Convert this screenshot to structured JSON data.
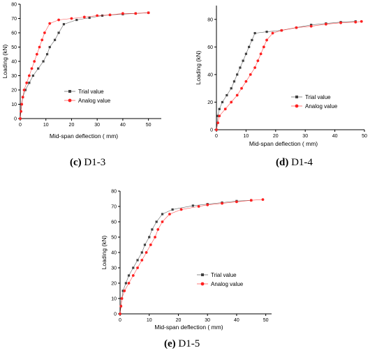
{
  "chart_data": [
    {
      "type": "line",
      "panel_label": "(c)",
      "panel_name": "D1-3",
      "xlabel": "Mid-span deflection ( mm)",
      "ylabel": "Loading (kN)",
      "xlim": [
        0,
        55
      ],
      "ylim": [
        0,
        80
      ],
      "xticks": [
        0,
        10,
        20,
        30,
        40,
        50
      ],
      "yticks": [
        0,
        10,
        20,
        30,
        40,
        50,
        60,
        70,
        80
      ],
      "legend_position": "center-right",
      "series": [
        {
          "name": "Trial value",
          "color": "#404040",
          "marker": "square",
          "points": [
            [
              0,
              0
            ],
            [
              0.5,
              10
            ],
            [
              1,
              15
            ],
            [
              2,
              20
            ],
            [
              3.5,
              25
            ],
            [
              5,
              30
            ],
            [
              7,
              35
            ],
            [
              9,
              40
            ],
            [
              10.5,
              45
            ],
            [
              11.5,
              50
            ],
            [
              13.5,
              55
            ],
            [
              15,
              60
            ],
            [
              17,
              66
            ],
            [
              22,
              69
            ],
            [
              27,
              70.5
            ],
            [
              32,
              72
            ],
            [
              35,
              72.5
            ],
            [
              40,
              73
            ],
            [
              45,
              73.5
            ],
            [
              50,
              74
            ]
          ]
        },
        {
          "name": "Analog value",
          "color": "#ff2020",
          "marker": "circle",
          "points": [
            [
              0,
              0
            ],
            [
              0.3,
              5
            ],
            [
              0.6,
              10
            ],
            [
              1,
              15
            ],
            [
              1.5,
              20
            ],
            [
              2.5,
              25
            ],
            [
              3.5,
              30
            ],
            [
              4.5,
              35
            ],
            [
              5.5,
              40
            ],
            [
              6.5,
              45
            ],
            [
              7.5,
              50
            ],
            [
              8.5,
              55
            ],
            [
              9.5,
              60
            ],
            [
              11.5,
              66.5
            ],
            [
              15,
              69
            ],
            [
              20,
              70
            ],
            [
              25,
              71
            ],
            [
              30,
              72
            ],
            [
              35,
              72.5
            ],
            [
              40,
              73.5
            ],
            [
              45,
              73.5
            ],
            [
              50,
              74
            ]
          ]
        }
      ]
    },
    {
      "type": "line",
      "panel_label": "(d)",
      "panel_name": "D1-4",
      "xlabel": "Mid-span deflection ( mm)",
      "ylabel": "Loading (kN)",
      "xlim": [
        0,
        50
      ],
      "ylim": [
        0,
        90
      ],
      "xticks": [
        0,
        10,
        20,
        30,
        40,
        50
      ],
      "yticks": [
        0,
        20,
        40,
        60,
        80
      ],
      "legend_position": "center-right",
      "series": [
        {
          "name": "Trial value",
          "color": "#404040",
          "marker": "square",
          "points": [
            [
              0,
              0
            ],
            [
              0.5,
              10
            ],
            [
              1,
              15
            ],
            [
              2,
              20
            ],
            [
              3.5,
              25
            ],
            [
              5,
              30
            ],
            [
              6,
              35
            ],
            [
              7,
              40
            ],
            [
              8,
              45
            ],
            [
              9,
              50
            ],
            [
              10,
              55
            ],
            [
              11,
              60
            ],
            [
              12,
              65
            ],
            [
              13,
              70
            ],
            [
              17,
              71
            ],
            [
              22,
              72
            ],
            [
              27,
              74
            ],
            [
              32,
              76
            ],
            [
              37,
              77
            ],
            [
              42,
              78
            ],
            [
              47,
              78.5
            ]
          ]
        },
        {
          "name": "Analog value",
          "color": "#ff2020",
          "marker": "circle",
          "points": [
            [
              0,
              0
            ],
            [
              0.5,
              5
            ],
            [
              1,
              10
            ],
            [
              3,
              15
            ],
            [
              5,
              20
            ],
            [
              7,
              25
            ],
            [
              8.5,
              30
            ],
            [
              10,
              35
            ],
            [
              11.5,
              40
            ],
            [
              13,
              45
            ],
            [
              14,
              50
            ],
            [
              15,
              55
            ],
            [
              16,
              60
            ],
            [
              17,
              65
            ],
            [
              19,
              70
            ],
            [
              22,
              72
            ],
            [
              27,
              74
            ],
            [
              32,
              75
            ],
            [
              37,
              76.5
            ],
            [
              42,
              77.5
            ],
            [
              47,
              78
            ],
            [
              49,
              78.5
            ]
          ]
        }
      ]
    },
    {
      "type": "line",
      "panel_label": "(e)",
      "panel_name": "D1-5",
      "xlabel": "Mid-span deflection ( mm)",
      "ylabel": "Loading (kN)",
      "xlim": [
        0,
        52
      ],
      "ylim": [
        0,
        80
      ],
      "xticks": [
        0,
        10,
        20,
        30,
        40,
        50
      ],
      "yticks": [
        0,
        10,
        20,
        30,
        40,
        50,
        60,
        70,
        80
      ],
      "legend_position": "center-right",
      "series": [
        {
          "name": "Trial value",
          "color": "#404040",
          "marker": "square",
          "points": [
            [
              0,
              0
            ],
            [
              0.3,
              5
            ],
            [
              0.6,
              10
            ],
            [
              1,
              15
            ],
            [
              2,
              20
            ],
            [
              3,
              25
            ],
            [
              4.5,
              30
            ],
            [
              6,
              35
            ],
            [
              7.5,
              40
            ],
            [
              8.5,
              45
            ],
            [
              10,
              50
            ],
            [
              11,
              55
            ],
            [
              12.5,
              60
            ],
            [
              14.5,
              65
            ],
            [
              18,
              68
            ],
            [
              25,
              70.5
            ],
            [
              30,
              71.5
            ],
            [
              35,
              72.5
            ],
            [
              40,
              73.5
            ],
            [
              45,
              74
            ]
          ]
        },
        {
          "name": "Analog value",
          "color": "#ff2020",
          "marker": "circle",
          "points": [
            [
              0,
              0
            ],
            [
              0.3,
              5
            ],
            [
              0.6,
              10
            ],
            [
              1.5,
              15
            ],
            [
              3,
              20
            ],
            [
              4.5,
              25
            ],
            [
              6,
              30
            ],
            [
              7.5,
              35
            ],
            [
              9,
              40
            ],
            [
              10.5,
              45
            ],
            [
              12,
              50
            ],
            [
              13,
              55
            ],
            [
              14.5,
              60
            ],
            [
              17,
              65
            ],
            [
              21,
              68
            ],
            [
              27,
              70
            ],
            [
              30,
              71
            ],
            [
              35,
              72
            ],
            [
              40,
              73
            ],
            [
              45,
              74
            ],
            [
              49,
              74.5
            ]
          ]
        }
      ]
    }
  ]
}
